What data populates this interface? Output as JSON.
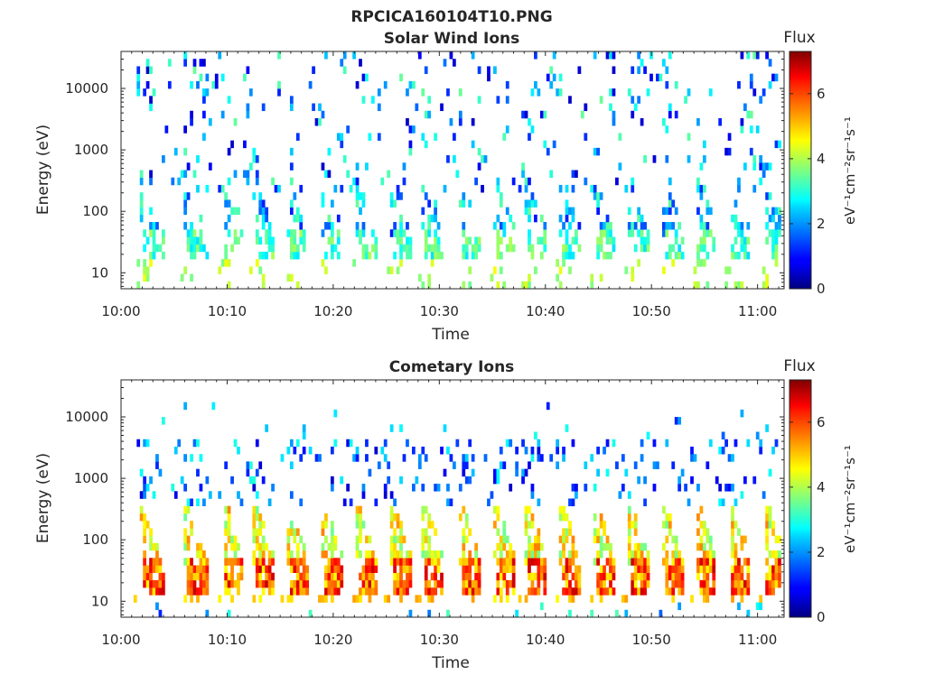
{
  "figure_title": "RPCICA160104T10.PNG",
  "colormap": "jet",
  "chart_data": [
    {
      "type": "heatmap",
      "title": "Solar Wind Ions",
      "xlabel": "Time",
      "ylabel": "Energy (eV)",
      "x_tick_labels": [
        "10:00",
        "10:10",
        "10:20",
        "10:30",
        "10:40",
        "10:50",
        "11:00"
      ],
      "xlim_minutes_after_10_00": [
        0,
        62.5
      ],
      "y_scale": "log",
      "ylim": [
        5.5,
        40000
      ],
      "y_ticks": [
        10,
        100,
        1000,
        10000
      ],
      "y_tick_labels": [
        "10",
        "100",
        "1000",
        "10000"
      ],
      "colorbar": {
        "title": "Flux",
        "label": "eV⁻¹cm⁻²sr⁻¹s⁻¹",
        "range": [
          0,
          7.3
        ],
        "ticks": [
          0,
          2,
          4,
          6
        ],
        "tick_labels": [
          "0",
          "2",
          "4",
          "6"
        ]
      },
      "pattern": {
        "burst_minutes": [
          2.2,
          6.4,
          10.0,
          12.8,
          16.0,
          19.3,
          22.5,
          25.8,
          28.8,
          32.2,
          35.5,
          38.5,
          41.8,
          45.0,
          48.2,
          51.5,
          54.5,
          57.8,
          61.0
        ],
        "low_energy_band_eV": [
          18,
          45
        ],
        "main_flux": [
          2.5,
          4.0
        ],
        "sparse_high_energy_flux": [
          0.5,
          3.5
        ]
      }
    },
    {
      "type": "heatmap",
      "title": "Cometary Ions",
      "xlabel": "Time",
      "ylabel": "Energy (eV)",
      "x_tick_labels": [
        "10:00",
        "10:10",
        "10:20",
        "10:30",
        "10:40",
        "10:50",
        "11:00"
      ],
      "xlim_minutes_after_10_00": [
        0,
        62.5
      ],
      "y_scale": "log",
      "ylim": [
        5.5,
        40000
      ],
      "y_ticks": [
        10,
        100,
        1000,
        10000
      ],
      "y_tick_labels": [
        "10",
        "100",
        "1000",
        "10000"
      ],
      "colorbar": {
        "title": "Flux",
        "label": "eV⁻¹cm⁻²sr⁻¹s⁻¹",
        "range": [
          0,
          7.3
        ],
        "ticks": [
          0,
          2,
          4,
          6
        ],
        "tick_labels": [
          "0",
          "2",
          "4",
          "6"
        ]
      },
      "pattern": {
        "burst_minutes": [
          2.2,
          6.4,
          10.0,
          12.8,
          16.0,
          19.3,
          22.5,
          25.8,
          28.8,
          32.2,
          35.5,
          38.5,
          41.8,
          45.0,
          48.2,
          51.5,
          54.5,
          57.8,
          61.0
        ],
        "low_energy_band_eV": [
          14,
          45
        ],
        "main_flux": [
          4.5,
          6.8
        ],
        "sparse_high_energy_flux": [
          0.5,
          3.0
        ]
      }
    }
  ]
}
